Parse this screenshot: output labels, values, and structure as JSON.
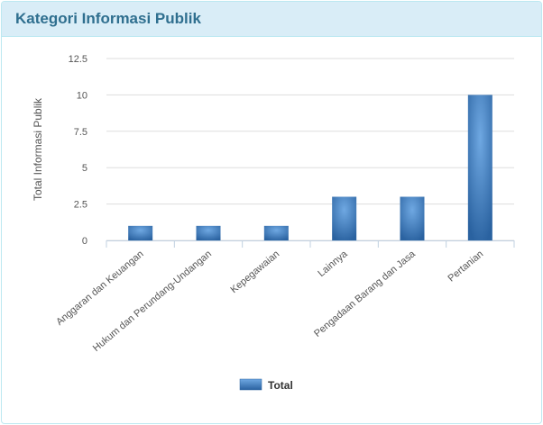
{
  "panel": {
    "title": "Kategori Informasi Publik"
  },
  "chart_data": {
    "type": "bar",
    "categories": [
      "Anggaran dan Keuangan",
      "Hukum dan Perundang-Undangan",
      "Kepegawaian",
      "Lainnya",
      "Pengadaan Barang dan Jasa",
      "Pertanian"
    ],
    "series": [
      {
        "name": "Total",
        "values": [
          1,
          1,
          1,
          3,
          3,
          10
        ],
        "color": "#3d7cc2"
      }
    ],
    "title": "",
    "xlabel": "",
    "ylabel": "Total Informasi Publik",
    "ylim": [
      0,
      12.5
    ],
    "yticks": [
      "0",
      "2.5",
      "5",
      "7.5",
      "10",
      "12.5"
    ],
    "grid": true,
    "legend": "bottom"
  }
}
